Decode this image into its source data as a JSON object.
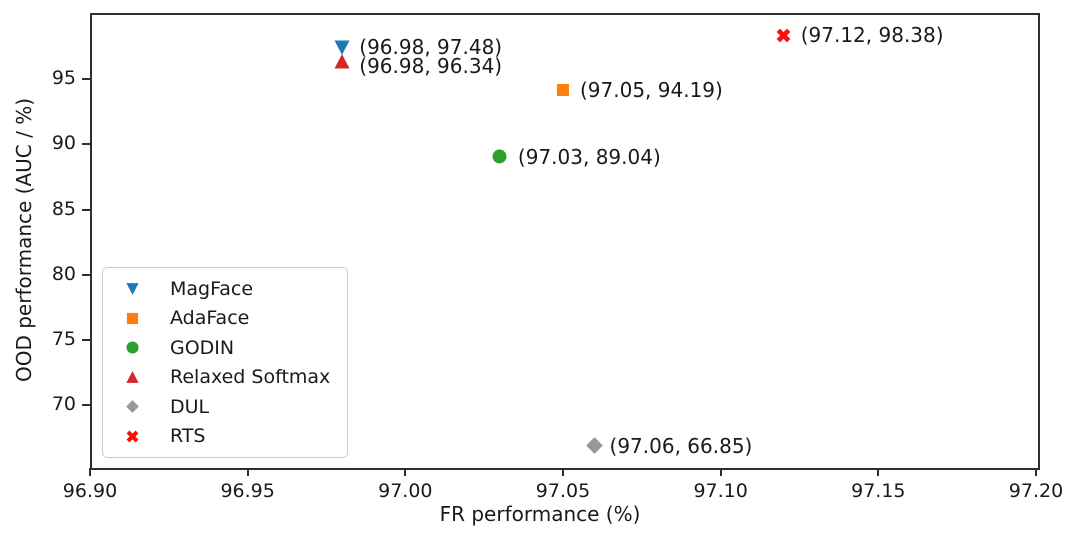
{
  "figure": {
    "background": "#ffffff",
    "spine_color": "#2e2e2e",
    "text_color": "#1a1a1a"
  },
  "chart_data": {
    "type": "scatter",
    "title": "",
    "xlabel": "FR performance (%)",
    "ylabel": "OOD performance (AUC / %)",
    "xlim": [
      96.9,
      97.2
    ],
    "ylim": [
      65.3,
      100.1
    ],
    "xticks": [
      "96.90",
      "96.95",
      "97.00",
      "97.05",
      "97.10",
      "97.15",
      "97.20"
    ],
    "yticks": [
      "70",
      "75",
      "80",
      "85",
      "90",
      "95"
    ],
    "grid": false,
    "legend_position": "lower-left",
    "series": [
      {
        "name": "MagFace",
        "marker": "triangle-down",
        "color": "#1f77b4",
        "size": 16,
        "x": 96.98,
        "y": 97.48,
        "annotation": "(96.98, 97.48)",
        "label_dx": 17,
        "label_dy": 0
      },
      {
        "name": "AdaFace",
        "marker": "square",
        "color": "#ff7f0e",
        "size": 14,
        "x": 97.05,
        "y": 94.19,
        "annotation": "(97.05, 94.19)",
        "label_dx": 17,
        "label_dy": 0
      },
      {
        "name": "GODIN",
        "marker": "circle",
        "color": "#2ca02c",
        "size": 15,
        "x": 97.03,
        "y": 89.04,
        "annotation": "(97.03, 89.04)",
        "label_dx": 18,
        "label_dy": 0
      },
      {
        "name": "Relaxed Softmax",
        "marker": "triangle-up",
        "color": "#d62728",
        "size": 16,
        "x": 96.98,
        "y": 96.34,
        "annotation": "(96.98, 96.34)",
        "label_dx": 17,
        "label_dy": 4
      },
      {
        "name": "DUL",
        "marker": "diamond",
        "color": "#989898",
        "size": 17,
        "x": 97.06,
        "y": 66.85,
        "annotation": "(97.06, 66.85)",
        "label_dx": 15,
        "label_dy": 0
      },
      {
        "name": "RTS",
        "marker": "x-cross",
        "color": "#ff0f05",
        "size": 15,
        "x": 97.12,
        "y": 98.38,
        "annotation": "(97.12, 98.38)",
        "label_dx": 17,
        "label_dy": 0
      }
    ]
  }
}
